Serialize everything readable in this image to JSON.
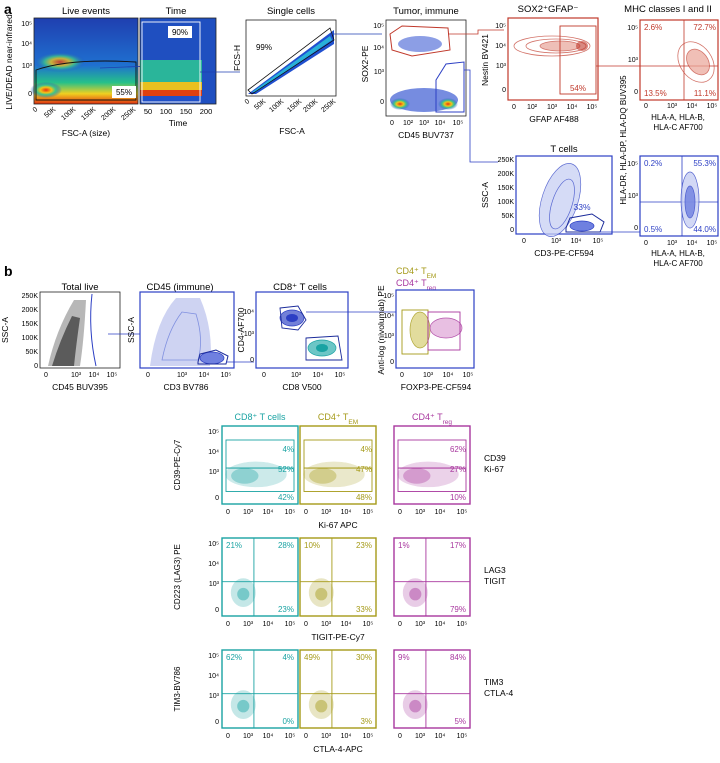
{
  "panel_a": {
    "label": "a",
    "plots": [
      {
        "id": "live",
        "title": "Live events",
        "title_color": "#222222",
        "xlabel": "FSC-A (size)",
        "ylabel": "LIVE/DEAD near-infrared",
        "xticks": [
          "0",
          "50K",
          "100K",
          "150K",
          "200K",
          "250K"
        ],
        "yticks": [
          "10⁵",
          "10⁴",
          "10³",
          "0"
        ],
        "gates": [
          "55%"
        ]
      },
      {
        "id": "time",
        "title": "Time",
        "title_color": "#222222",
        "xlabel": "Time",
        "ylabel": "",
        "xticks": [
          "50",
          "100",
          "150",
          "200"
        ],
        "yticks": [],
        "gates": [
          "90%"
        ]
      },
      {
        "id": "single",
        "title": "Single cells",
        "title_color": "#222222",
        "xlabel": "FSC-A",
        "ylabel": "FCS-H",
        "xticks": [
          "0",
          "50K",
          "100K",
          "150K",
          "200K",
          "250K"
        ],
        "yticks": [],
        "gates": [
          "99%"
        ]
      },
      {
        "id": "tumor",
        "title": "Tumor, immune",
        "title_color": "#c0392b",
        "xlabel": "CD45 BUV737",
        "ylabel": "SOX2-PE",
        "xticks": [
          "0",
          "10²",
          "10³",
          "10⁴",
          "10⁵"
        ],
        "yticks": [
          "10⁵",
          "10⁴",
          "10³",
          "0"
        ],
        "gates": []
      },
      {
        "id": "sox2",
        "title": "SOX2⁺GFAP⁻",
        "title_color": "#c0392b",
        "xlabel": "GFAP AF488",
        "ylabel": "Nestin BV421",
        "xticks": [
          "0",
          "10²",
          "10³",
          "10⁴",
          "10⁵"
        ],
        "yticks": [
          "10⁵",
          "10⁴",
          "10³",
          "0"
        ],
        "gates": [
          "54%"
        ]
      },
      {
        "id": "mhc1",
        "title": "MHC classes I and II",
        "title_color": "#222222",
        "xlabel": "HLA-A, HLA-B, HLA-C AF700",
        "ylabel": "HLA-DR, HLA-DP, HLA-DQ BUV395",
        "xticks": [
          "0",
          "10³",
          "10⁴",
          "10⁵"
        ],
        "yticks": [
          "10⁵",
          "10³",
          "0"
        ],
        "gates": [
          "2.6%",
          "72.7%",
          "13.5%",
          "11.1%"
        ]
      },
      {
        "id": "tcells",
        "title": "T cells",
        "title_color": "#2c3fc4",
        "xlabel": "CD3-PE-CF594",
        "ylabel": "SSC-A",
        "xticks": [
          "0",
          "10³",
          "10⁴",
          "10⁵"
        ],
        "yticks": [
          "250K",
          "200K",
          "150K",
          "100K",
          "50K",
          "0"
        ],
        "gates": [
          "33%"
        ]
      },
      {
        "id": "mhc2",
        "title": "",
        "title_color": "#222222",
        "xlabel": "HLA-A, HLA-B, HLA-C AF700",
        "ylabel": "HLA-DR, HLA-DP, HLA-DQ BUV395",
        "xticks": [
          "0",
          "10³",
          "10⁴",
          "10⁵"
        ],
        "yticks": [
          "10⁵",
          "10³",
          "0"
        ],
        "gates": [
          "0.2%",
          "55.3%",
          "0.5%",
          "44.0%"
        ]
      }
    ]
  },
  "panel_b": {
    "label": "b",
    "plots": [
      {
        "id": "totallive",
        "title": "Total live",
        "title_color": "#222222",
        "xlabel": "CD45 BUV395",
        "ylabel": "SSC-A",
        "xticks": [
          "0",
          "10³",
          "10⁴",
          "10⁵"
        ],
        "yticks": [
          "250K",
          "200K",
          "150K",
          "100K",
          "50K",
          "0"
        ]
      },
      {
        "id": "cd45",
        "title": "CD45 (immune)",
        "title_color": "#2c3fc4",
        "xlabel": "CD3 BV786",
        "ylabel": "SSC-A",
        "xticks": [
          "0",
          "10³",
          "10⁴",
          "10⁵"
        ],
        "yticks": []
      },
      {
        "id": "cd8",
        "title": "CD8⁺ T cells",
        "title_color": "#1aa3a3",
        "xlabel": "CD8 V500",
        "ylabel": "CD4-AF700",
        "xticks": [
          "0",
          "10³",
          "10⁴",
          "10⁵"
        ],
        "yticks": [
          "10⁴",
          "10³",
          "0"
        ]
      },
      {
        "id": "treg",
        "title1": "CD4⁺ T_EM",
        "title2": "CD4⁺ T_reg",
        "title1_color": "#a59a18",
        "title2_color": "#a8379e",
        "xlabel": "FOXP3-PE-CF594",
        "ylabel": "Anti-log (nivolumab) PE",
        "xticks": [
          "0",
          "10³",
          "10⁴",
          "10⁵"
        ],
        "yticks": [
          "10⁵",
          "10⁴",
          "10³",
          "0"
        ]
      }
    ],
    "grid_columns": [
      {
        "title": "CD8⁺ T cells",
        "color": "#1aa3a3"
      },
      {
        "title": "CD4⁺ T_EM",
        "color": "#a59a18"
      },
      {
        "title": "CD4⁺ T_reg",
        "color": "#a8379e"
      }
    ],
    "grid_rows": [
      {
        "ylabel": "CD39-PE-Cy7",
        "xlabel": "Ki-67 APC",
        "right_label": [
          "CD39",
          "Ki-67"
        ],
        "layout": "three",
        "values": [
          [
            "4%",
            "52%",
            "42%"
          ],
          [
            "4%",
            "47%",
            "48%"
          ],
          [
            "62%",
            "27%",
            "10%"
          ]
        ]
      },
      {
        "ylabel": "CD223 (LAG3) PE",
        "xlabel": "TIGIT-PE-Cy7",
        "right_label": [
          "LAG3",
          "TIGIT"
        ],
        "layout": "quad",
        "values": [
          [
            "21%",
            "28%",
            "",
            "23%"
          ],
          [
            "10%",
            "23%",
            "",
            "33%"
          ],
          [
            "1%",
            "17%",
            "",
            "79%"
          ]
        ]
      },
      {
        "ylabel": "TIM3-BV786",
        "xlabel": "CTLA-4-APC",
        "right_label": [
          "TIM3",
          "CTLA-4"
        ],
        "layout": "quad",
        "values": [
          [
            "62%",
            "4%",
            "",
            "0%"
          ],
          [
            "49%",
            "30%",
            "",
            "3%"
          ],
          [
            "9%",
            "84%",
            "",
            "5%"
          ]
        ]
      }
    ],
    "grid_xticks": [
      "0",
      "10³",
      "10⁴",
      "10⁵"
    ],
    "grid_yticks": [
      "10⁵",
      "10⁴",
      "10³",
      "0"
    ]
  }
}
